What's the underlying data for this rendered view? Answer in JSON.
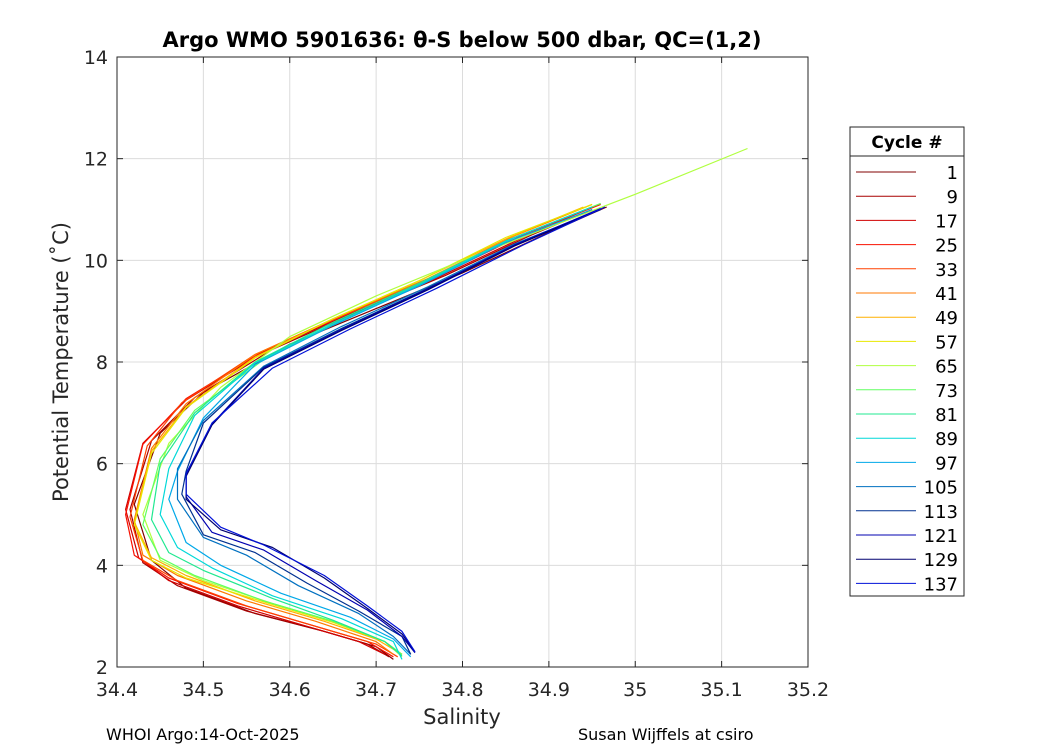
{
  "chart_data": {
    "type": "line",
    "title": "Argo WMO 5901636: θ-S below 500 dbar,  QC=(1,2)",
    "xlabel": "Salinity",
    "ylabel": "Potential Temperature (˚C)",
    "xlim": [
      34.4,
      35.2
    ],
    "ylim": [
      2,
      14
    ],
    "xticks": [
      "34.4",
      "34.5",
      "34.6",
      "34.7",
      "34.8",
      "34.9",
      "35",
      "35.1",
      "35.2"
    ],
    "yticks": [
      "2",
      "4",
      "6",
      "8",
      "10",
      "12",
      "14"
    ],
    "grid": true,
    "legend_title": "Cycle #",
    "legend_position": "right",
    "series": [
      {
        "name": "1",
        "color": "#800000",
        "x": [
          34.967,
          34.9,
          34.8,
          34.7,
          34.6,
          34.5,
          34.45,
          34.42,
          34.44,
          34.48,
          34.56,
          34.64,
          34.7,
          34.72
        ],
        "y": [
          11.05,
          10.55,
          9.75,
          9.05,
          8.35,
          7.4,
          6.6,
          5.2,
          4.1,
          3.55,
          3.05,
          2.7,
          2.4,
          2.15
        ]
      },
      {
        "name": "9",
        "color": "#a80000",
        "x": [
          34.95,
          34.88,
          34.78,
          34.68,
          34.58,
          34.49,
          34.44,
          34.415,
          34.43,
          34.47,
          34.55,
          34.63,
          34.69,
          34.715
        ],
        "y": [
          11.0,
          10.5,
          9.7,
          9.0,
          8.25,
          7.3,
          6.45,
          5.1,
          4.05,
          3.6,
          3.1,
          2.75,
          2.45,
          2.2
        ]
      },
      {
        "name": "17",
        "color": "#d00000",
        "x": [
          34.95,
          34.87,
          34.77,
          34.67,
          34.57,
          34.48,
          34.43,
          34.41,
          34.425,
          34.46,
          34.54,
          34.62,
          34.68,
          34.71
        ],
        "y": [
          11.05,
          10.45,
          9.65,
          8.95,
          8.2,
          7.25,
          6.4,
          5.1,
          4.15,
          3.7,
          3.2,
          2.8,
          2.5,
          2.25
        ]
      },
      {
        "name": "25",
        "color": "#f81000",
        "x": [
          34.96,
          34.87,
          34.77,
          34.67,
          34.57,
          34.48,
          34.43,
          34.41,
          34.42,
          34.46,
          34.54,
          34.62,
          34.69,
          34.72
        ],
        "y": [
          11.1,
          10.5,
          9.68,
          8.98,
          8.22,
          7.28,
          6.38,
          5.0,
          4.2,
          3.75,
          3.25,
          2.85,
          2.5,
          2.2
        ]
      },
      {
        "name": "33",
        "color": "#ff4000",
        "x": [
          34.95,
          34.86,
          34.76,
          34.66,
          34.56,
          34.475,
          34.435,
          34.415,
          34.43,
          34.47,
          34.55,
          34.63,
          34.7,
          34.725
        ],
        "y": [
          11.05,
          10.45,
          9.62,
          8.9,
          8.15,
          7.2,
          6.35,
          4.95,
          4.1,
          3.7,
          3.2,
          2.8,
          2.45,
          2.2
        ]
      },
      {
        "name": "41",
        "color": "#ff7800",
        "x": [
          34.95,
          34.86,
          34.76,
          34.66,
          34.56,
          34.48,
          34.44,
          34.42,
          34.43,
          34.47,
          34.55,
          34.63,
          34.7,
          34.72
        ],
        "y": [
          11.1,
          10.48,
          9.64,
          8.92,
          8.15,
          7.18,
          6.3,
          4.9,
          4.2,
          3.8,
          3.3,
          2.9,
          2.5,
          2.25
        ]
      },
      {
        "name": "49",
        "color": "#ffb000",
        "x": [
          34.94,
          34.85,
          34.75,
          34.65,
          34.56,
          34.48,
          34.44,
          34.42,
          34.44,
          34.48,
          34.56,
          34.64,
          34.7,
          34.73
        ],
        "y": [
          11.05,
          10.42,
          9.6,
          8.85,
          8.1,
          7.12,
          6.25,
          4.85,
          4.15,
          3.8,
          3.3,
          2.9,
          2.55,
          2.25
        ]
      },
      {
        "name": "57",
        "color": "#e8e800",
        "x": [
          34.95,
          34.85,
          34.75,
          34.65,
          34.56,
          34.48,
          34.44,
          34.42,
          34.44,
          34.48,
          34.57,
          34.65,
          34.71,
          34.73
        ],
        "y": [
          11.1,
          10.45,
          9.6,
          8.85,
          8.08,
          7.1,
          6.2,
          4.8,
          4.1,
          3.75,
          3.28,
          2.88,
          2.5,
          2.25
        ]
      },
      {
        "name": "65",
        "color": "#b0ff40",
        "x": [
          35.13,
          35.0,
          34.9,
          34.8,
          34.7,
          34.6,
          34.52,
          34.46,
          34.43,
          34.45,
          34.5,
          34.58,
          34.66,
          34.71,
          34.73
        ],
        "y": [
          12.2,
          11.3,
          10.65,
          10.0,
          9.3,
          8.5,
          7.5,
          6.4,
          5.0,
          4.1,
          3.7,
          3.25,
          2.85,
          2.5,
          2.2
        ]
      },
      {
        "name": "73",
        "color": "#60ff60",
        "x": [
          34.96,
          34.86,
          34.76,
          34.66,
          34.57,
          34.49,
          34.45,
          34.43,
          34.45,
          34.49,
          34.57,
          34.65,
          34.71,
          34.73
        ],
        "y": [
          11.12,
          10.45,
          9.6,
          8.82,
          8.05,
          7.05,
          6.1,
          4.8,
          4.15,
          3.8,
          3.3,
          2.9,
          2.5,
          2.25
        ]
      },
      {
        "name": "81",
        "color": "#20e890",
        "x": [
          34.95,
          34.85,
          34.75,
          34.65,
          34.56,
          34.49,
          34.45,
          34.44,
          34.46,
          34.5,
          34.58,
          34.65,
          34.71,
          34.73
        ],
        "y": [
          11.05,
          10.38,
          9.55,
          8.78,
          8.0,
          7.0,
          6.0,
          4.9,
          4.25,
          3.9,
          3.35,
          2.92,
          2.5,
          2.22
        ]
      },
      {
        "name": "89",
        "color": "#00d8d8",
        "x": [
          34.95,
          34.85,
          34.75,
          34.65,
          34.56,
          34.49,
          34.46,
          34.45,
          34.47,
          34.51,
          34.58,
          34.66,
          34.72,
          34.73
        ],
        "y": [
          11.05,
          10.38,
          9.52,
          8.75,
          7.98,
          6.95,
          5.9,
          5.0,
          4.35,
          3.95,
          3.4,
          2.95,
          2.5,
          2.15
        ]
      },
      {
        "name": "97",
        "color": "#00a8e8",
        "x": [
          34.95,
          34.85,
          34.75,
          34.65,
          34.56,
          34.5,
          34.47,
          34.46,
          34.48,
          34.52,
          34.59,
          34.67,
          34.72,
          34.74
        ],
        "y": [
          11.0,
          10.35,
          9.5,
          8.72,
          7.95,
          6.9,
          5.85,
          5.3,
          4.45,
          4.0,
          3.45,
          2.98,
          2.55,
          2.2
        ]
      },
      {
        "name": "105",
        "color": "#0070c0",
        "x": [
          34.96,
          34.86,
          34.76,
          34.66,
          34.57,
          34.5,
          34.47,
          34.47,
          34.5,
          34.55,
          34.61,
          34.68,
          34.72,
          34.74
        ],
        "y": [
          11.0,
          10.32,
          9.48,
          8.7,
          7.92,
          6.85,
          5.9,
          5.3,
          4.55,
          4.2,
          3.6,
          3.05,
          2.6,
          2.25
        ]
      },
      {
        "name": "113",
        "color": "#003090",
        "x": [
          34.96,
          34.86,
          34.76,
          34.66,
          34.57,
          34.5,
          34.48,
          34.475,
          34.5,
          34.56,
          34.62,
          34.68,
          34.73,
          34.74
        ],
        "y": [
          11.0,
          10.3,
          9.45,
          8.66,
          7.9,
          6.8,
          5.85,
          5.4,
          4.6,
          4.25,
          3.65,
          3.1,
          2.6,
          2.25
        ]
      },
      {
        "name": "121",
        "color": "#0000b0",
        "x": [
          34.96,
          34.86,
          34.76,
          34.66,
          34.57,
          34.51,
          34.48,
          34.48,
          34.51,
          34.57,
          34.63,
          34.69,
          34.73,
          34.745
        ],
        "y": [
          11.02,
          10.3,
          9.44,
          8.64,
          7.88,
          6.78,
          5.8,
          5.35,
          4.65,
          4.3,
          3.7,
          3.12,
          2.6,
          2.28
        ]
      },
      {
        "name": "129",
        "color": "#000070",
        "x": [
          34.96,
          34.86,
          34.76,
          34.66,
          34.57,
          34.51,
          34.48,
          34.48,
          34.52,
          34.58,
          34.64,
          34.69,
          34.73,
          34.745
        ],
        "y": [
          11.0,
          10.28,
          9.42,
          8.62,
          7.86,
          6.76,
          5.75,
          5.3,
          4.7,
          4.35,
          3.75,
          3.15,
          2.65,
          2.3
        ]
      },
      {
        "name": "137",
        "color": "#0010d8",
        "x": [
          34.965,
          34.87,
          34.77,
          34.67,
          34.58,
          34.51,
          34.48,
          34.48,
          34.52,
          34.57,
          34.64,
          34.69,
          34.73,
          34.745
        ],
        "y": [
          11.05,
          10.3,
          9.45,
          8.65,
          7.88,
          6.8,
          5.8,
          5.4,
          4.75,
          4.4,
          3.8,
          3.2,
          2.7,
          2.3
        ]
      }
    ]
  },
  "footer": {
    "left": "WHOI Argo:14-Oct-2025",
    "right": "Susan Wijffels at csiro"
  }
}
